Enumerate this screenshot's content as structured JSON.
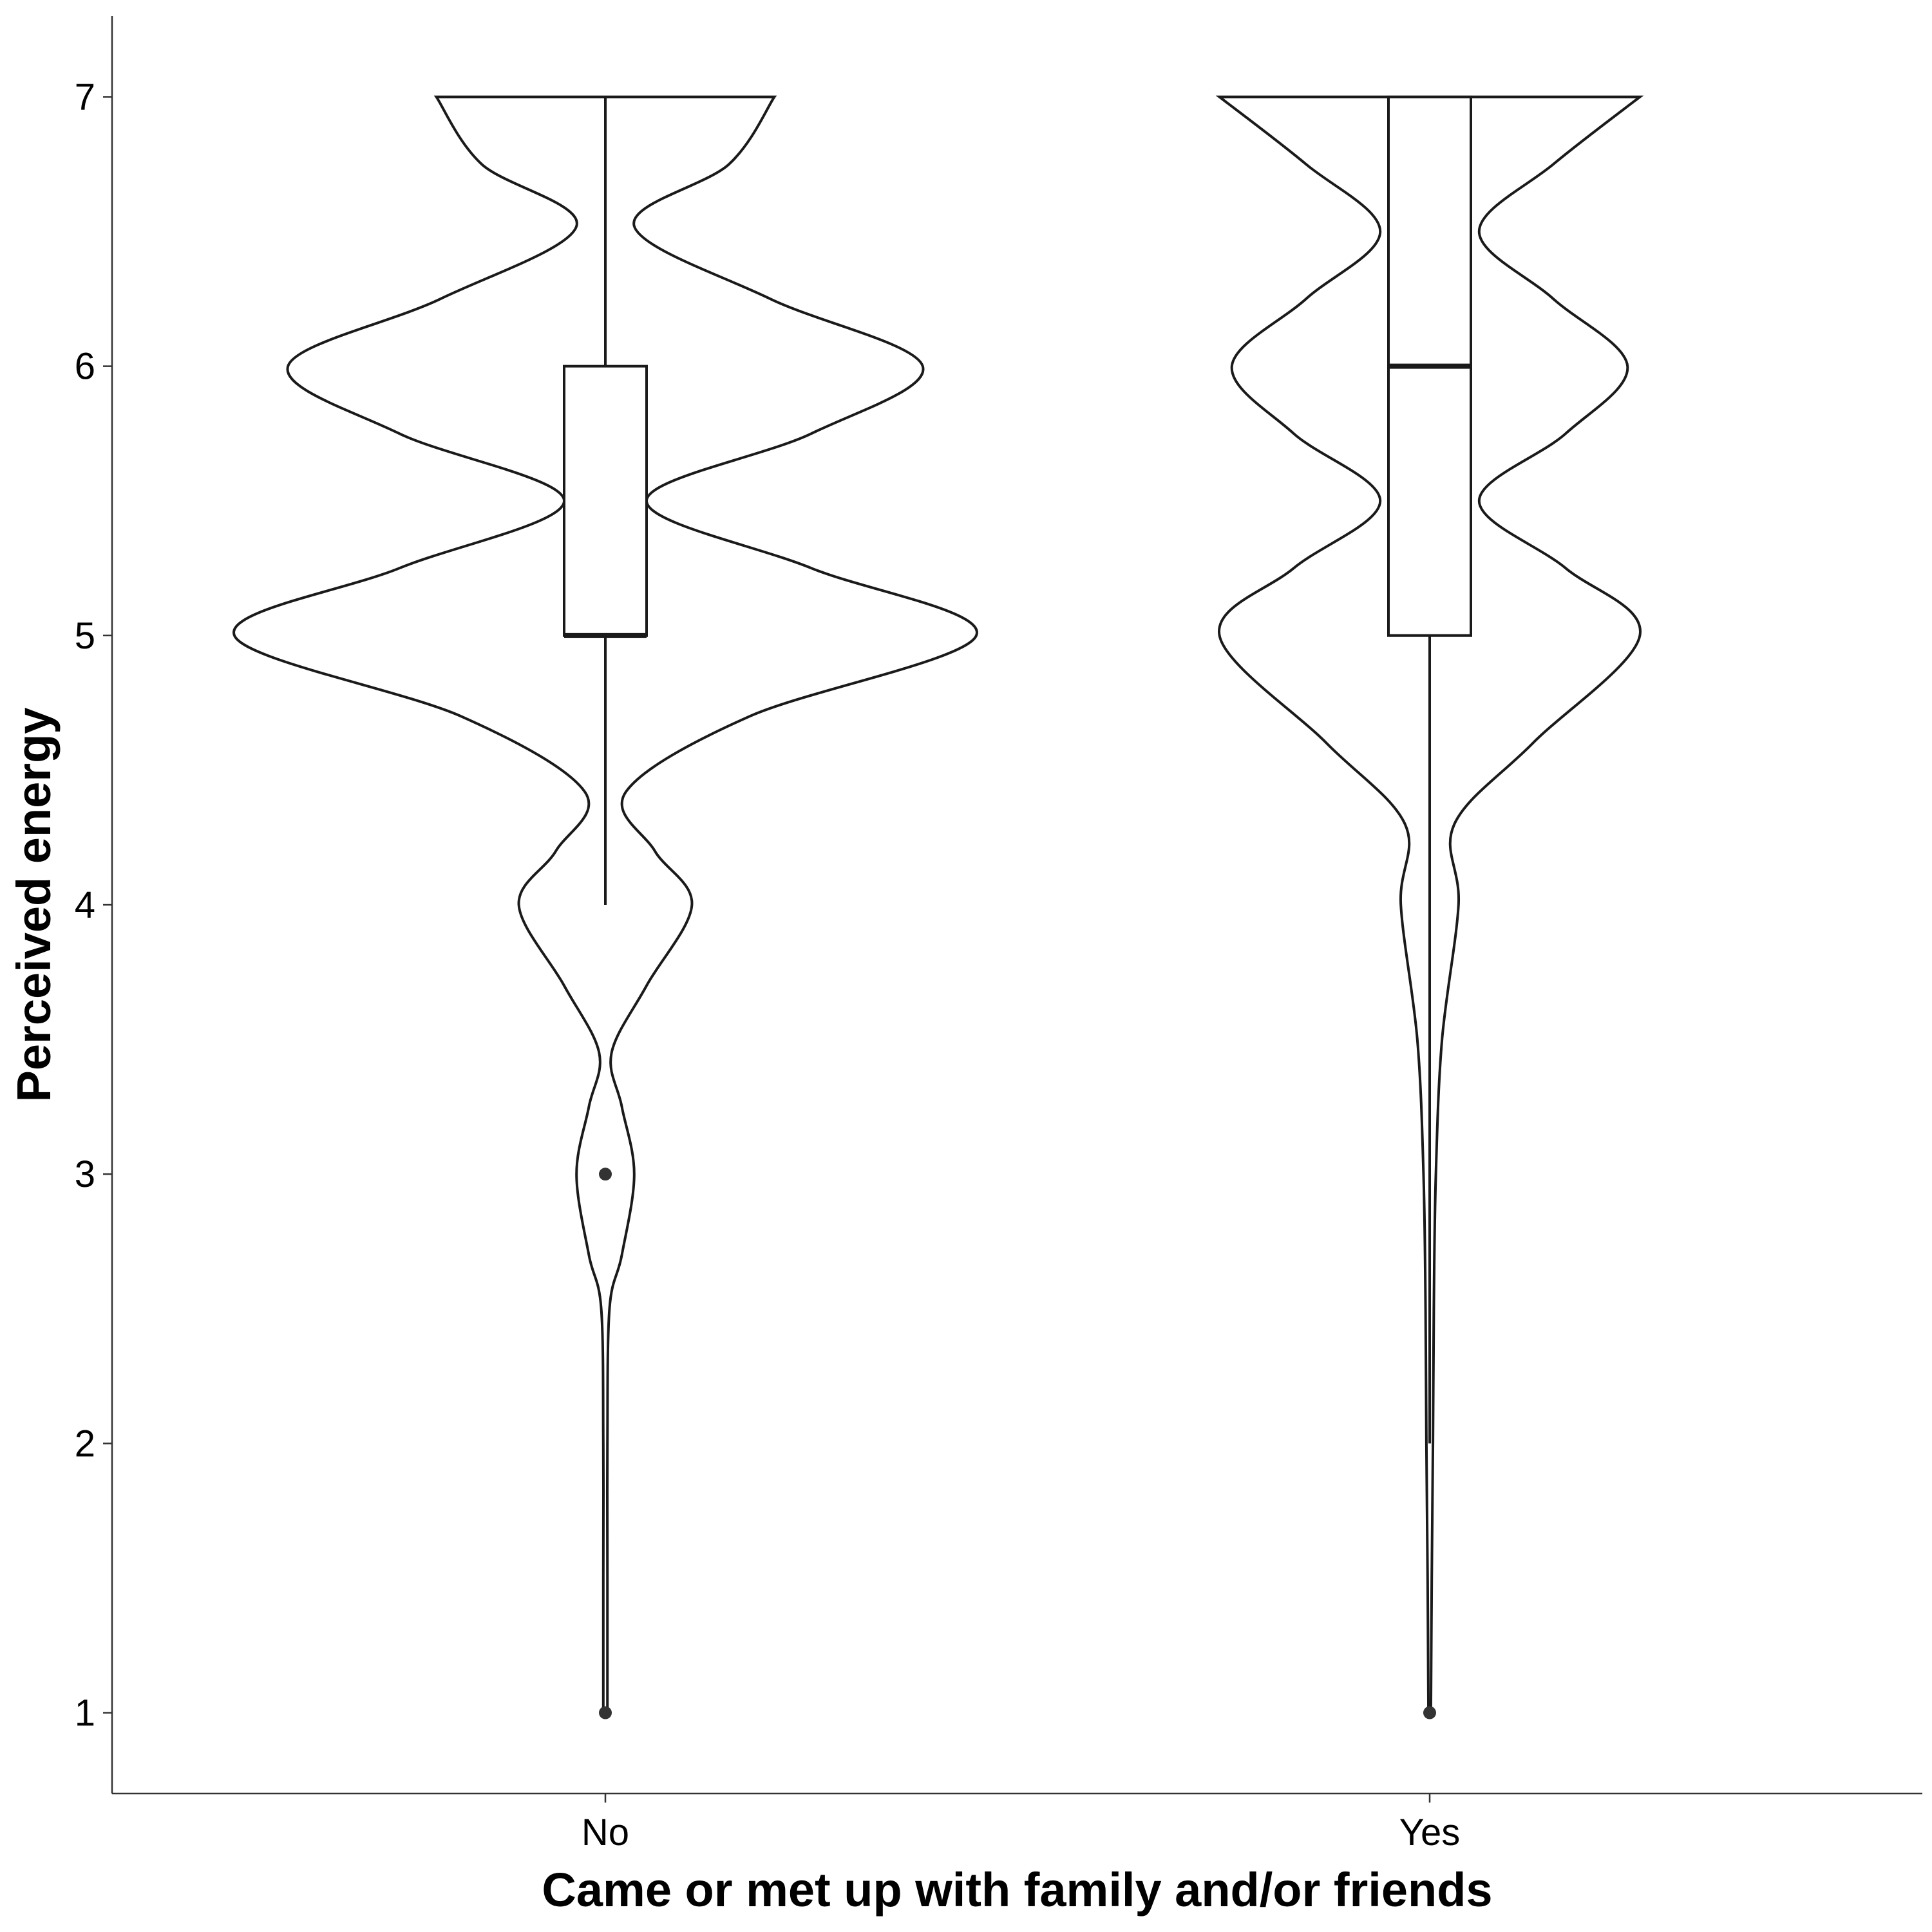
{
  "chart_data": {
    "type": "violin",
    "title": "",
    "xlabel": "Came or met up with family and/or friends",
    "ylabel": "Perceived energy",
    "ylim": [
      0.7,
      7.3
    ],
    "yticks": [
      1,
      2,
      3,
      4,
      5,
      6,
      7
    ],
    "grid": false,
    "legend": "none",
    "categories": [
      "No",
      "Yes"
    ],
    "groups": [
      {
        "category": "No",
        "violin_density": {
          "y": [
            1.0,
            1.5,
            2.0,
            2.5,
            2.7,
            3.0,
            3.25,
            3.45,
            3.7,
            4.0,
            4.2,
            4.42,
            4.7,
            5.0,
            5.25,
            5.5,
            5.75,
            6.0,
            6.25,
            6.52,
            6.75,
            7.0
          ],
          "half_width": [
            0.005,
            0.005,
            0.005,
            0.01,
            0.04,
            0.07,
            0.04,
            0.015,
            0.1,
            0.21,
            0.12,
            0.05,
            0.35,
            0.9,
            0.5,
            0.1,
            0.5,
            0.77,
            0.4,
            0.07,
            0.3,
            0.41
          ]
        },
        "box": {
          "min": 4,
          "q1": 5,
          "median": 5,
          "q3": 6,
          "max": 7
        },
        "outliers": [
          3,
          1
        ]
      },
      {
        "category": "Yes",
        "violin_density": {
          "y": [
            1.0,
            1.5,
            2.0,
            2.5,
            3.0,
            3.5,
            4.0,
            4.3,
            4.6,
            5.0,
            5.25,
            5.5,
            5.75,
            6.0,
            6.25,
            6.5,
            6.75,
            7.0
          ],
          "half_width": [
            0.003,
            0.005,
            0.008,
            0.01,
            0.015,
            0.03,
            0.07,
            0.06,
            0.25,
            0.51,
            0.33,
            0.12,
            0.33,
            0.48,
            0.3,
            0.12,
            0.3,
            0.51
          ]
        },
        "box": {
          "min": 2,
          "q1": 5,
          "median": 6,
          "q3": 7,
          "max": 7
        },
        "outliers": [
          1
        ]
      }
    ],
    "style": {
      "line_color": "#1a1a1a",
      "fill": "none",
      "point_color": "#333333"
    }
  }
}
